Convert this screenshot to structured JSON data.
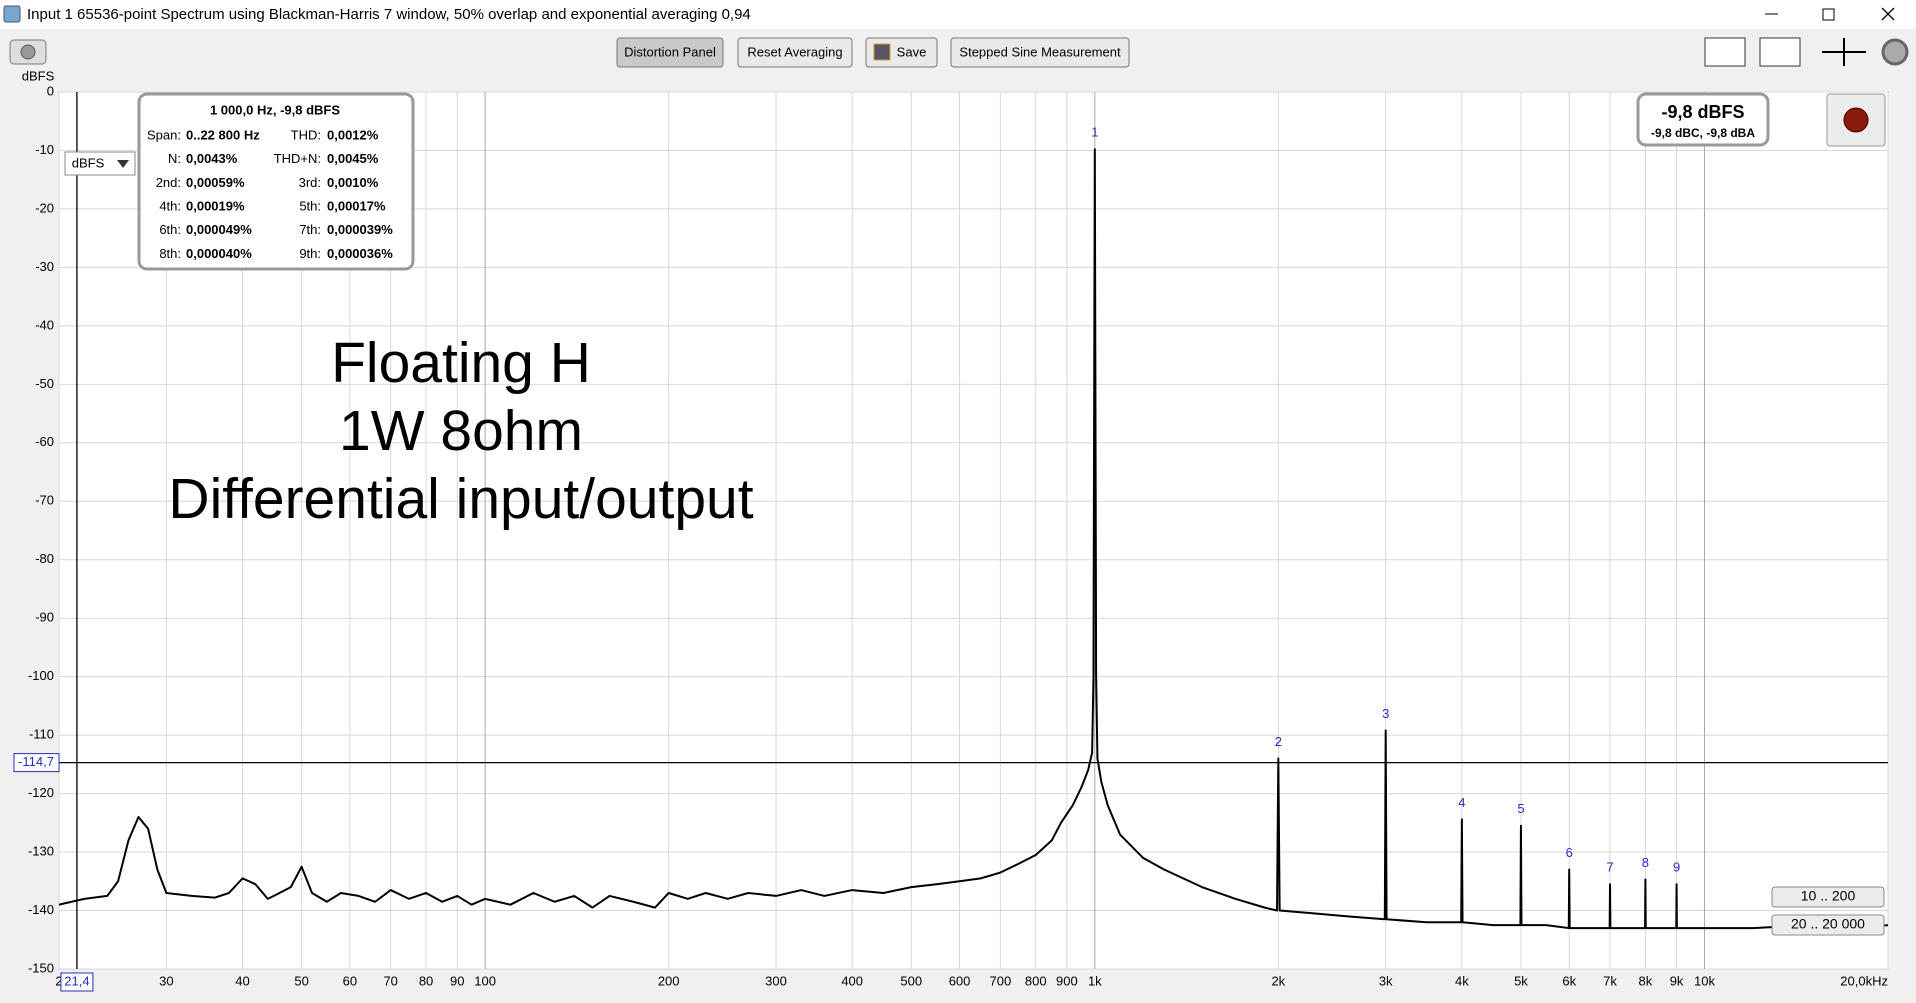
{
  "window": {
    "title": "Input 1 65536-point Spectrum using Blackman-Harris 7 window, 50% overlap and exponential averaging 0,94"
  },
  "toolbar": {
    "buttons": [
      "Distortion Panel",
      "Reset Averaging",
      "Save",
      "Stepped Sine Measurement"
    ]
  },
  "units_dropdown": "dBFS",
  "distortion_panel": {
    "header": "1 000,0 Hz, -9,8 dBFS",
    "rows": [
      [
        "Span:",
        "0..22 800 Hz",
        "THD:",
        "0,0012%"
      ],
      [
        "N:",
        "0,0043%",
        "THD+N:",
        "0,0045%"
      ],
      [
        "2nd:",
        "0,00059%",
        "3rd:",
        "0,0010%"
      ],
      [
        "4th:",
        "0,00019%",
        "5th:",
        "0,00017%"
      ],
      [
        "6th:",
        "0,000049%",
        "7th:",
        "0,000039%"
      ],
      [
        "8th:",
        "0,000040%",
        "9th:",
        "0,000036%"
      ]
    ]
  },
  "level_meter": {
    "main": "-9,8 dBFS",
    "sub": "-9,8 dBC, -9,8 dBA"
  },
  "range_buttons": [
    "10 .. 200",
    "20 .. 20 000"
  ],
  "annotation": [
    "Floating H",
    "1W 8ohm",
    "Differential input/output"
  ],
  "chart_data": {
    "type": "line",
    "y_label": "dBFS",
    "xscale": "log",
    "grid": true,
    "color": "#000000",
    "xlim": [
      20,
      20000
    ],
    "ylim": [
      -150,
      0
    ],
    "yticks": [
      0,
      -10,
      -20,
      -30,
      -40,
      -50,
      -60,
      -70,
      -80,
      -90,
      -100,
      -110,
      -120,
      -130,
      -140,
      -150
    ],
    "xticks": [
      {
        "value": 20,
        "label": "2"
      },
      30,
      40,
      50,
      60,
      70,
      80,
      90,
      100,
      200,
      300,
      400,
      500,
      600,
      700,
      800,
      900,
      {
        "value": 1000,
        "label": "1k"
      },
      {
        "value": 2000,
        "label": "2k"
      },
      {
        "value": 3000,
        "label": "3k"
      },
      {
        "value": 4000,
        "label": "4k"
      },
      {
        "value": 5000,
        "label": "5k"
      },
      {
        "value": 6000,
        "label": "6k"
      },
      {
        "value": 7000,
        "label": "7k"
      },
      {
        "value": 8000,
        "label": "8k"
      },
      {
        "value": 9000,
        "label": "9k"
      },
      {
        "value": 10000,
        "label": "10k"
      },
      {
        "value": 20000,
        "label": "20,0kHz"
      }
    ],
    "x": [
      20,
      22,
      24,
      25,
      26,
      27,
      28,
      29,
      30,
      33,
      36,
      38,
      40,
      42,
      44,
      46,
      48,
      50,
      52,
      55,
      58,
      62,
      66,
      70,
      75,
      80,
      85,
      90,
      95,
      100,
      110,
      120,
      130,
      140,
      150,
      160,
      175,
      190,
      200,
      215,
      230,
      250,
      270,
      300,
      330,
      360,
      400,
      450,
      500,
      550,
      600,
      650,
      700,
      750,
      800,
      850,
      880,
      920,
      950,
      975,
      990,
      995,
      1000,
      1005,
      1010,
      1025,
      1050,
      1100,
      1200,
      1300,
      1500,
      1700,
      1900,
      1990,
      2000,
      2010,
      2300,
      2600,
      2990,
      3000,
      3010,
      3500,
      3990,
      4000,
      4010,
      4500,
      4990,
      5000,
      5010,
      5500,
      5990,
      6000,
      6010,
      6500,
      6990,
      7000,
      7010,
      7500,
      7990,
      8000,
      8010,
      8500,
      8990,
      9000,
      9010,
      10000,
      12000,
      15000,
      18000,
      20000
    ],
    "values": [
      -139,
      -138,
      -137.5,
      -135,
      -128,
      -124,
      -126,
      -133,
      -137,
      -137.5,
      -137.8,
      -137,
      -134.5,
      -135.5,
      -138,
      -137,
      -136,
      -132.5,
      -137,
      -138.5,
      -137,
      -137.5,
      -138.5,
      -136.5,
      -138,
      -137,
      -138.5,
      -137.5,
      -139,
      -138,
      -139,
      -137,
      -138.5,
      -137.5,
      -139.5,
      -137.5,
      -138.5,
      -139.5,
      -137,
      -138,
      -137,
      -138,
      -137,
      -137.5,
      -136.5,
      -137.5,
      -136.5,
      -137,
      -136,
      -135.5,
      -135,
      -134.5,
      -133.5,
      -132,
      -130.5,
      -128,
      -125,
      -122,
      -119,
      -116,
      -113,
      -100,
      -9.8,
      -100,
      -114,
      -118,
      -122,
      -127,
      -131,
      -133,
      -136,
      -138,
      -139.5,
      -140,
      -114,
      -140,
      -140.5,
      -141,
      -141.5,
      -109.2,
      -141.5,
      -142,
      -142,
      -124.4,
      -142,
      -142.5,
      -142.5,
      -125.5,
      -142.5,
      -142.5,
      -143,
      -133,
      -143,
      -143,
      -143,
      -135.5,
      -143,
      -143,
      -143,
      -134.7,
      -143,
      -143,
      -143,
      -135.5,
      -143,
      -143,
      -143,
      -142.5,
      -143,
      -142.5
    ],
    "harmonics": [
      {
        "label": "1",
        "x": 1000
      },
      {
        "label": "2",
        "x": 2000
      },
      {
        "label": "3",
        "x": 3000
      },
      {
        "label": "4",
        "x": 4000
      },
      {
        "label": "5",
        "x": 5000
      },
      {
        "label": "6",
        "x": 6000
      },
      {
        "label": "7",
        "x": 7000
      },
      {
        "label": "8",
        "x": 8000
      },
      {
        "label": "9",
        "x": 9000
      }
    ],
    "cursor": {
      "x": {
        "value": 21.4,
        "label": "21,4"
      },
      "y": {
        "value": -114.7,
        "label": "-114,7"
      }
    }
  }
}
